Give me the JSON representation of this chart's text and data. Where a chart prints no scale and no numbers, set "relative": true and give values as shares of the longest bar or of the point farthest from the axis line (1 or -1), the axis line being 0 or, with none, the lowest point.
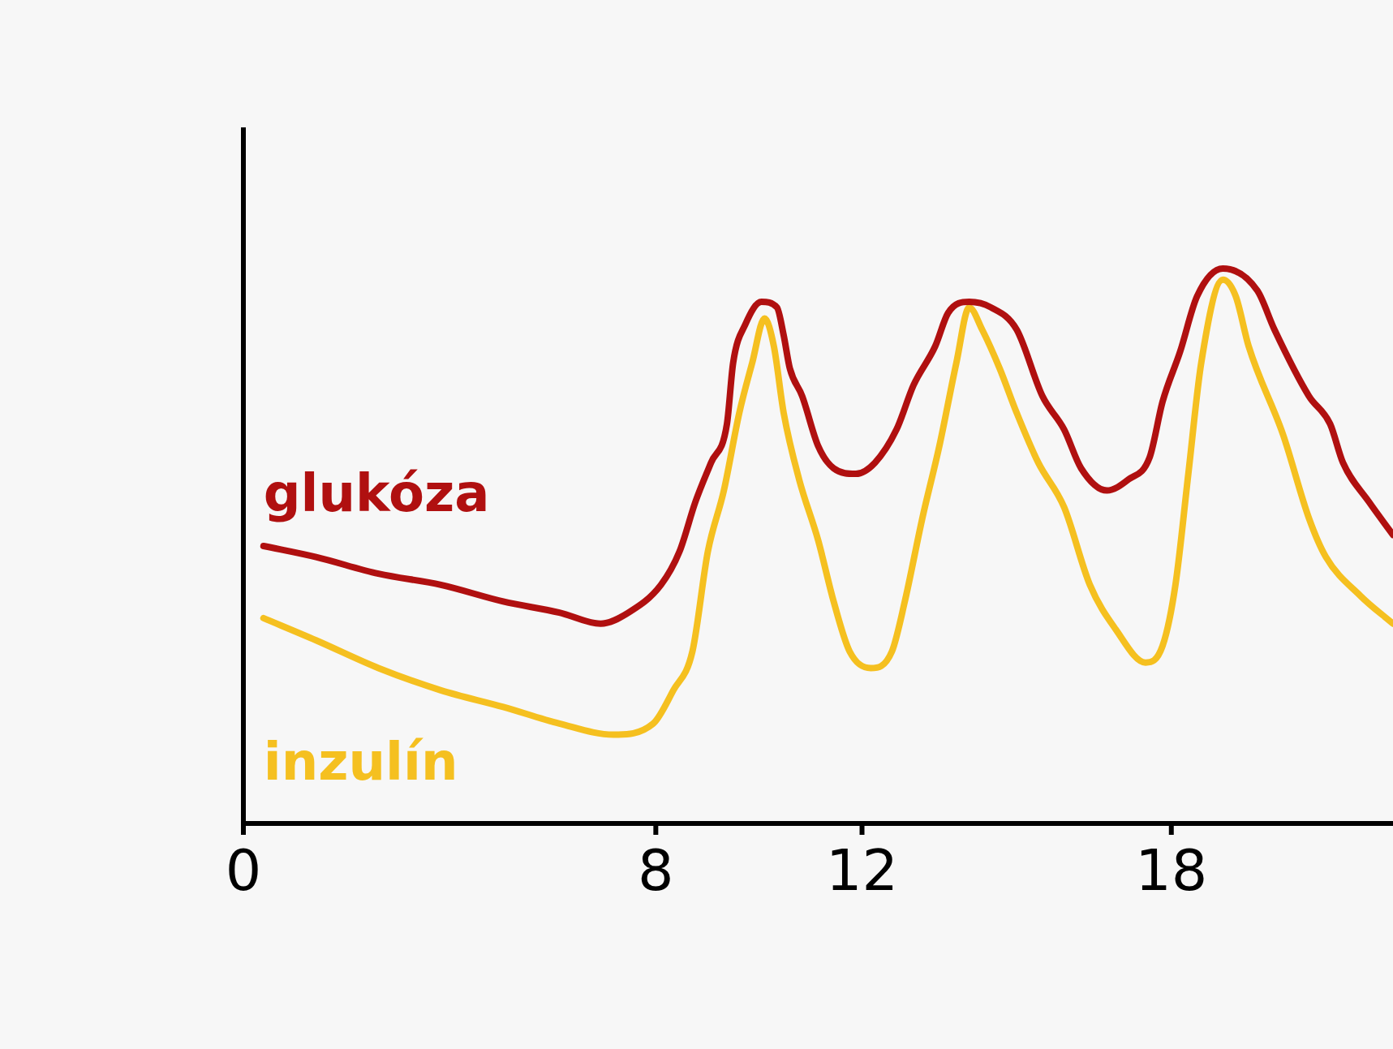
{
  "chart_data": {
    "type": "line",
    "relative": true,
    "grid": false,
    "legend": false,
    "marker": "none",
    "tick_labels": "x",
    "xlim": [
      0,
      22.3
    ],
    "xticks": [
      0,
      8,
      12,
      18
    ],
    "series": [
      {
        "name": "glukóza",
        "color": "#b01010",
        "x": [
          0.39,
          1.41,
          2.62,
          3.83,
          5.04,
          6.13,
          6.93,
          7.47,
          8.1,
          8.46,
          8.77,
          9.07,
          9.38,
          9.5,
          9.74,
          10.05,
          10.35,
          10.48,
          10.6,
          10.84,
          11.15,
          11.45,
          11.88,
          12.25,
          12.67,
          13.0,
          13.42,
          13.67,
          14.08,
          14.5,
          15.0,
          15.5,
          15.92,
          16.25,
          16.75,
          17.17,
          17.58,
          17.83,
          18.17,
          18.5,
          19.0,
          19.67,
          20.0,
          20.67,
          21.08,
          21.33,
          21.83,
          22.3
        ],
        "values": [
          0.5,
          0.48,
          0.45,
          0.43,
          0.4,
          0.38,
          0.36,
          0.38,
          0.43,
          0.49,
          0.58,
          0.65,
          0.72,
          0.83,
          0.9,
          0.94,
          0.93,
          0.88,
          0.82,
          0.77,
          0.68,
          0.64,
          0.63,
          0.65,
          0.71,
          0.79,
          0.86,
          0.92,
          0.94,
          0.93,
          0.89,
          0.77,
          0.71,
          0.64,
          0.6,
          0.62,
          0.66,
          0.76,
          0.85,
          0.95,
          1.0,
          0.96,
          0.89,
          0.77,
          0.72,
          0.65,
          0.58,
          0.52
        ]
      },
      {
        "name": "inzulín",
        "color": "#f5c020",
        "x": [
          0.39,
          1.41,
          2.62,
          3.83,
          5.04,
          6.13,
          7.18,
          7.95,
          8.34,
          8.71,
          9.01,
          9.32,
          9.62,
          9.87,
          10.11,
          10.29,
          10.48,
          10.78,
          11.15,
          11.45,
          11.76,
          12.17,
          12.58,
          12.83,
          13.17,
          13.5,
          13.83,
          14.08,
          14.33,
          14.67,
          15.0,
          15.42,
          15.92,
          16.42,
          16.92,
          17.5,
          17.83,
          18.08,
          18.33,
          18.58,
          19.0,
          19.25,
          19.5,
          20.17,
          20.67,
          21.0,
          21.67,
          22.3
        ],
        "values": [
          0.37,
          0.33,
          0.28,
          0.24,
          0.21,
          0.18,
          0.16,
          0.18,
          0.24,
          0.31,
          0.49,
          0.6,
          0.74,
          0.83,
          0.91,
          0.86,
          0.74,
          0.62,
          0.51,
          0.4,
          0.31,
          0.28,
          0.31,
          0.4,
          0.55,
          0.68,
          0.83,
          0.93,
          0.89,
          0.82,
          0.74,
          0.65,
          0.57,
          0.43,
          0.35,
          0.29,
          0.32,
          0.43,
          0.63,
          0.83,
          0.98,
          0.95,
          0.86,
          0.7,
          0.55,
          0.48,
          0.41,
          0.36
        ]
      }
    ]
  }
}
